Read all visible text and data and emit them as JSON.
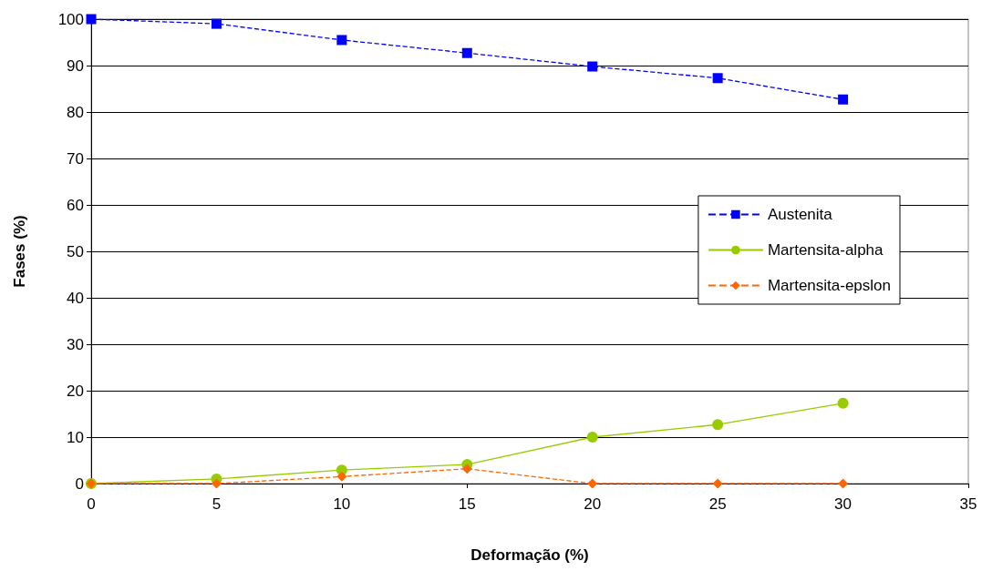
{
  "chart_data": {
    "type": "line",
    "xlabel": "Deformação (%)",
    "ylabel": "Fases (%)",
    "x": [
      0,
      5,
      10,
      15,
      20,
      25,
      30
    ],
    "series": [
      {
        "name": "Austenita",
        "color": "#0000ff",
        "marker": "square",
        "line_style": "dashed",
        "values": [
          100,
          99,
          95.5,
          92.7,
          89.8,
          87.3,
          82.7
        ]
      },
      {
        "name": "Martensita-alpha",
        "color": "#99cc00",
        "marker": "circle",
        "line_style": "solid",
        "values": [
          0,
          1,
          2.9,
          4.1,
          10,
          12.7,
          17.3
        ]
      },
      {
        "name": "Martensita-epslon",
        "color": "#ff6600",
        "marker": "diamond",
        "line_style": "dashed",
        "values": [
          0,
          0,
          1.5,
          3.2,
          0,
          0,
          0
        ]
      }
    ],
    "xlim": [
      0,
      35
    ],
    "xticks": [
      0,
      5,
      10,
      15,
      20,
      25,
      30,
      35
    ],
    "ylim": [
      0,
      100
    ],
    "yticks": [
      0,
      10,
      20,
      30,
      40,
      50,
      60,
      70,
      80,
      90,
      100
    ],
    "grid": "y",
    "legend": "right"
  }
}
